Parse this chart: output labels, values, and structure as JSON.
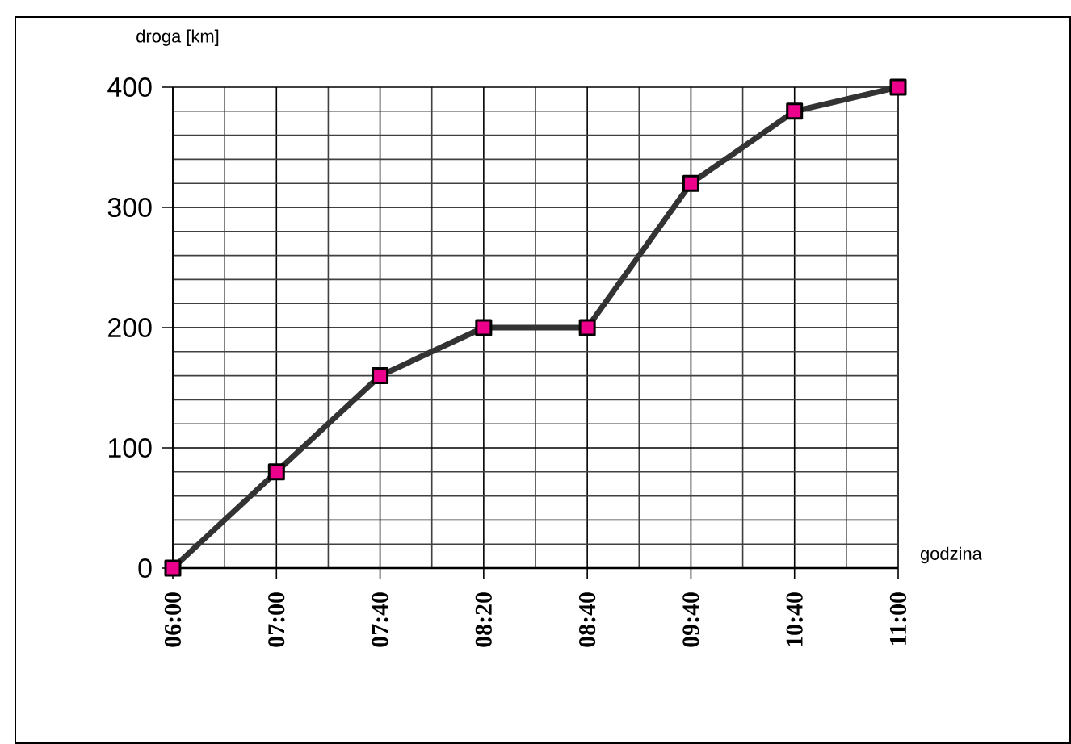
{
  "chart_data": {
    "type": "line",
    "xlabel": "godzina",
    "ylabel": "droga [km]",
    "categories": [
      "06:00",
      "07:00",
      "07:40",
      "08:20",
      "08:40",
      "09:40",
      "10:40",
      "11:00"
    ],
    "values": [
      0,
      80,
      160,
      200,
      200,
      320,
      380,
      400
    ],
    "color": "#333333",
    "marker": "square",
    "line_style": "solid",
    "ylim": [
      0,
      400
    ],
    "yticks": [
      0,
      100,
      200,
      300,
      400
    ],
    "grid": true
  }
}
